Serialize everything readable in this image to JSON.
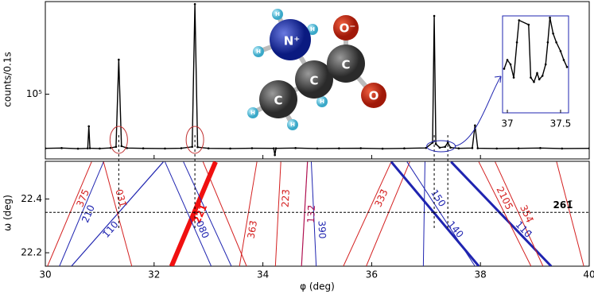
{
  "chart_data": [
    {
      "type": "line",
      "ylabel": "counts/0.1s",
      "ylog": true,
      "color": "#000000",
      "xlim": [
        30,
        40
      ],
      "ylim": [
        20000,
        1000000
      ],
      "yticks": [
        {
          "value": 100000,
          "label": "10⁵"
        }
      ],
      "x": [
        30,
        30.3,
        30.6,
        30.78,
        30.8,
        30.82,
        31.0,
        31.2,
        31.3,
        31.35,
        31.4,
        31.5,
        31.8,
        32.2,
        32.5,
        32.7,
        32.75,
        32.8,
        33.0,
        33.4,
        33.8,
        34.2,
        34.22,
        34.24,
        34.6,
        35.0,
        35.4,
        35.8,
        36.2,
        36.6,
        37.0,
        37.12,
        37.15,
        37.18,
        37.25,
        37.35,
        37.4,
        37.45,
        37.6,
        37.85,
        37.9,
        37.95,
        38.3,
        38.7,
        39.1,
        39.5,
        40
      ],
      "values": [
        26000,
        26200,
        25800,
        26000,
        45000,
        26100,
        25900,
        26300,
        27000,
        236000,
        27500,
        26200,
        26000,
        25900,
        26100,
        27000,
        940000,
        26800,
        26000,
        25900,
        26100,
        26000,
        22000,
        26000,
        26200,
        25900,
        26000,
        26100,
        25800,
        26000,
        26300,
        30000,
        700000,
        29000,
        26500,
        27000,
        30000,
        26500,
        26000,
        26200,
        46000,
        26100,
        25900,
        26000,
        26200,
        25900,
        26000
      ]
    },
    {
      "type": "line",
      "xlabel": "φ (deg)",
      "ylabel": "ω (deg)",
      "xlim": [
        30,
        40
      ],
      "ylim": [
        22.15,
        22.54
      ],
      "xticks": [
        30,
        32,
        34,
        36,
        38,
        40
      ],
      "yticks": [
        22.2,
        22.4
      ],
      "vlines": [
        31.35,
        32.75,
        37.15,
        37.4
      ],
      "hline": {
        "value": 22.35,
        "label": "261̄"
      },
      "series": [
        {
          "name": "375̄",
          "color": "#d42020",
          "width": 1,
          "x": [
            30.85,
            30.04
          ],
          "values": [
            22.538,
            22.15
          ]
        },
        {
          "name": "2̄10",
          "color": "#1f24b0",
          "width": 1,
          "x": [
            31.07,
            30.26
          ],
          "values": [
            22.538,
            22.15
          ]
        },
        {
          "name": "1̄10",
          "color": "#1f24b0",
          "width": 1.2,
          "x": [
            32.17,
            30.48
          ],
          "values": [
            22.538,
            22.15
          ]
        },
        {
          "name": "031̄",
          "color": "#d42020",
          "width": 1,
          "x": [
            31.07,
            31.59
          ],
          "values": [
            22.538,
            22.15
          ]
        },
        {
          "name": "221̄",
          "color": "#f01010",
          "width": 6,
          "x": [
            33.13,
            32.32
          ],
          "values": [
            22.538,
            22.15
          ]
        },
        {
          "name": "080",
          "color": "#1f24b0",
          "width": 1,
          "x": [
            32.2,
            33.05
          ],
          "values": [
            22.538,
            22.15
          ]
        },
        {
          "color": "#1f24b0",
          "width": 1,
          "x": [
            32.54,
            33.42
          ],
          "values": [
            22.538,
            22.15
          ]
        },
        {
          "color": "#d42020",
          "width": 1,
          "x": [
            32.9,
            33.7
          ],
          "values": [
            22.538,
            22.15
          ]
        },
        {
          "name": "363̄",
          "color": "#d42020",
          "width": 1,
          "x": [
            33.89,
            33.57
          ],
          "values": [
            22.538,
            22.15
          ]
        },
        {
          "name": "223̄",
          "color": "#d42020",
          "width": 1,
          "x": [
            34.33,
            34.23
          ],
          "values": [
            22.538,
            22.15
          ]
        },
        {
          "name": "132̄",
          "color": "#b01050",
          "width": 1.2,
          "x": [
            34.82,
            34.71
          ],
          "values": [
            22.538,
            22.15
          ]
        },
        {
          "name": "390",
          "color": "#1f24b0",
          "width": 1,
          "x": [
            34.89,
            34.98
          ],
          "values": [
            22.538,
            22.15
          ]
        },
        {
          "name": "333̄",
          "color": "#d42020",
          "width": 1,
          "x": [
            36.36,
            35.48
          ],
          "values": [
            22.538,
            22.15
          ]
        },
        {
          "color": "#d42020",
          "width": 1,
          "x": [
            36.7,
            35.9
          ],
          "values": [
            22.538,
            22.15
          ]
        },
        {
          "name": "140",
          "color": "#1f24b0",
          "width": 3,
          "x": [
            36.36,
            37.97
          ],
          "values": [
            22.538,
            22.15
          ]
        },
        {
          "name": "150",
          "color": "#1f24b0",
          "width": 1,
          "x": [
            36.65,
            37.9
          ],
          "values": [
            22.538,
            22.15
          ]
        },
        {
          "color": "#1f24b0",
          "width": 1,
          "x": [
            36.98,
            36.95
          ],
          "values": [
            22.538,
            22.15
          ]
        },
        {
          "name": "110̄",
          "color": "#1f24b0",
          "width": 3,
          "x": [
            37.46,
            39.3
          ],
          "values": [
            22.538,
            22.15
          ]
        },
        {
          "name": "2105̄",
          "color": "#d42020",
          "width": 1,
          "x": [
            37.97,
            38.93
          ],
          "values": [
            22.538,
            22.15
          ]
        },
        {
          "name": "354̄",
          "color": "#d42020",
          "width": 1,
          "x": [
            38.27,
            39.15
          ],
          "values": [
            22.538,
            22.15
          ]
        },
        {
          "color": "#d42020",
          "width": 1,
          "x": [
            39.4,
            39.9
          ],
          "values": [
            22.538,
            22.15
          ]
        }
      ]
    },
    {
      "type": "line",
      "color": "#000000",
      "xlim": [
        36.955,
        37.575
      ],
      "ylim": [
        25000,
        36000
      ],
      "xticks": [
        37,
        37.5
      ],
      "x": [
        36.97,
        37.0,
        37.03,
        37.06,
        37.09,
        37.11,
        37.2,
        37.22,
        37.25,
        37.28,
        37.3,
        37.33,
        37.36,
        37.38,
        37.4,
        37.43,
        37.46,
        37.5,
        37.53,
        37.56
      ],
      "values": [
        30000,
        31000,
        30500,
        29000,
        33000,
        35500,
        35000,
        29000,
        28500,
        29500,
        28800,
        29200,
        30500,
        33000,
        35800,
        34000,
        33000,
        32000,
        31000,
        30200
      ]
    }
  ],
  "molecule": {
    "atoms": [
      "N⁺",
      "C",
      "C",
      "C",
      "O⁻",
      "O"
    ],
    "hydrogen": "H"
  }
}
